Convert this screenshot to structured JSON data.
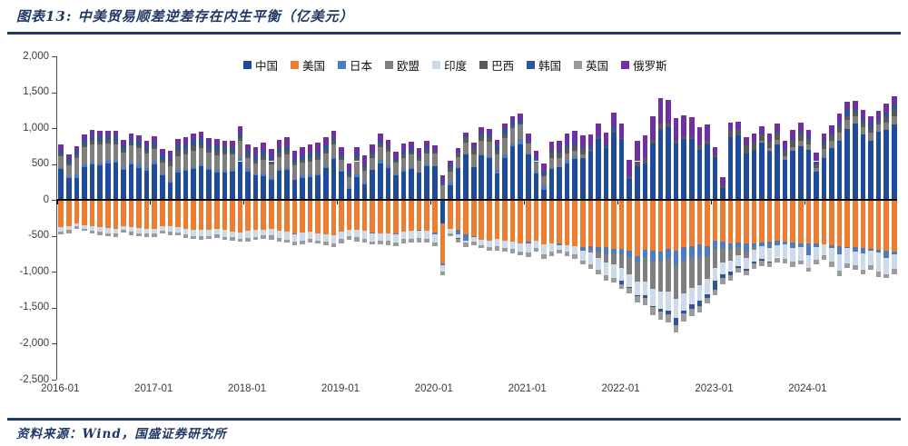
{
  "header": {
    "title": "图表13:  中美贸易顺差逆差存在内生平衡（亿美元）"
  },
  "footer": {
    "source": "资料来源：Wind，国盛证券研究所"
  },
  "colors": {
    "accent_navy": "#1F3864",
    "axis": "#4d4d4d",
    "zero_line": "#0a0a0a"
  },
  "chart_data": {
    "type": "bar",
    "stacked": true,
    "title": "中美贸易顺差逆差存在内生平衡",
    "unit": "亿美元",
    "months_start": "2016-01",
    "months_count": 108,
    "ylim": [
      -2500,
      2000
    ],
    "y_ticks": [
      2000,
      1500,
      1000,
      500,
      0,
      -500,
      -1000,
      -1500,
      -2000,
      -2500
    ],
    "y_tick_labels": [
      "2,000",
      "1,500",
      "1,000",
      "500",
      "0",
      "-500",
      "-1,000",
      "-1,500",
      "-2,000",
      "-2,500"
    ],
    "x_tick_labels": [
      "2016-01",
      "2017-01",
      "2018-01",
      "2019-01",
      "2020-01",
      "2021-01",
      "2022-01",
      "2023-01",
      "2024-01"
    ],
    "x_tick_month_index": [
      0,
      12,
      24,
      36,
      48,
      60,
      72,
      84,
      96
    ],
    "grid": false,
    "legend_position": "top-center",
    "series": [
      {
        "name": "中国",
        "color": "#1E4C9A",
        "values": [
          430,
          300,
          310,
          460,
          500,
          480,
          510,
          520,
          420,
          490,
          450,
          410,
          500,
          340,
          240,
          380,
          410,
          430,
          470,
          420,
          380,
          380,
          400,
          540,
          400,
          340,
          330,
          280,
          410,
          420,
          280,
          310,
          320,
          340,
          450,
          570,
          390,
          150,
          320,
          220,
          420,
          510,
          450,
          350,
          400,
          430,
          380,
          470,
          470,
          -330,
          200,
          450,
          630,
          460,
          620,
          590,
          370,
          580,
          750,
          780,
          630,
          370,
          140,
          430,
          460,
          510,
          570,
          580,
          670,
          850,
          720,
          940,
          850,
          290,
          470,
          510,
          790,
          980,
          1010,
          790,
          850,
          850,
          700,
          780,
          600,
          170,
          880,
          900,
          650,
          700,
          800,
          680,
          780,
          560,
          680,
          750,
          700,
          390,
          590,
          720,
          830,
          990,
          1060,
          910,
          820,
          950,
          970,
          1050
        ]
      },
      {
        "name": "美国",
        "color": "#ED7D31",
        "values": [
          -380,
          -360,
          -320,
          -350,
          -370,
          -380,
          -390,
          -400,
          -360,
          -380,
          -390,
          -400,
          -400,
          -370,
          -360,
          -380,
          -400,
          -410,
          -420,
          -410,
          -400,
          -420,
          -440,
          -450,
          -430,
          -420,
          -410,
          -400,
          -430,
          -440,
          -460,
          -450,
          -440,
          -460,
          -480,
          -490,
          -440,
          -410,
          -420,
          -430,
          -450,
          -460,
          -470,
          -460,
          -440,
          -430,
          -420,
          -430,
          -450,
          -550,
          -400,
          -420,
          -480,
          -500,
          -550,
          -560,
          -540,
          -560,
          -580,
          -600,
          -580,
          -560,
          -620,
          -600,
          -610,
          -630,
          -640,
          -650,
          -640,
          -650,
          -660,
          -680,
          -680,
          -700,
          -780,
          -690,
          -700,
          -720,
          -680,
          -700,
          -660,
          -640,
          -620,
          -640,
          -560,
          -580,
          -600,
          -590,
          -600,
          -610,
          -590,
          -580,
          -570,
          -580,
          -590,
          -600,
          -600,
          -610,
          -620,
          -630,
          -640,
          -650,
          -660,
          -670,
          -680,
          -690,
          -700,
          -720
        ]
      },
      {
        "name": "日本",
        "color": "#4E7DBF",
        "values": [
          20,
          30,
          40,
          30,
          20,
          30,
          40,
          30,
          20,
          30,
          40,
          30,
          30,
          20,
          30,
          40,
          20,
          30,
          20,
          30,
          40,
          30,
          20,
          50,
          30,
          20,
          40,
          30,
          20,
          30,
          -20,
          30,
          40,
          30,
          20,
          30,
          20,
          30,
          40,
          20,
          -10,
          50,
          30,
          -20,
          30,
          20,
          -10,
          20,
          -30,
          -30,
          40,
          -60,
          -80,
          -20,
          10,
          20,
          50,
          60,
          40,
          70,
          -30,
          20,
          50,
          20,
          -20,
          40,
          30,
          -60,
          -50,
          -70,
          -90,
          -60,
          -70,
          -90,
          -80,
          -120,
          -160,
          -130,
          -140,
          -200,
          -180,
          -160,
          -180,
          -140,
          -120,
          -90,
          -80,
          -60,
          -120,
          -40,
          -50,
          -90,
          -60,
          -40,
          -80,
          -60,
          -170,
          -40,
          30,
          -40,
          -120,
          -20,
          -60,
          -70,
          -30,
          -40,
          -110,
          -30
        ]
      },
      {
        "name": "欧盟",
        "color": "#7F7F7F",
        "values": [
          160,
          150,
          230,
          240,
          250,
          260,
          240,
          230,
          220,
          240,
          230,
          210,
          180,
          160,
          200,
          190,
          210,
          220,
          230,
          210,
          200,
          220,
          210,
          230,
          160,
          150,
          190,
          180,
          170,
          190,
          200,
          180,
          170,
          190,
          180,
          170,
          150,
          140,
          180,
          170,
          160,
          180,
          190,
          170,
          160,
          180,
          170,
          160,
          180,
          200,
          160,
          150,
          170,
          180,
          190,
          200,
          210,
          220,
          210,
          200,
          160,
          140,
          150,
          130,
          120,
          100,
          80,
          60,
          -40,
          -80,
          -120,
          -160,
          -200,
          -240,
          -280,
          -320,
          -380,
          -420,
          -450,
          -480,
          -460,
          -420,
          -380,
          -320,
          -260,
          -200,
          -160,
          -120,
          -80,
          -40,
          20,
          40,
          60,
          50,
          60,
          70,
          80,
          60,
          90,
          100,
          110,
          120,
          100,
          110,
          120,
          100,
          110,
          120
        ]
      },
      {
        "name": "印度",
        "color": "#CDDAEB",
        "values": [
          -60,
          -50,
          -40,
          -50,
          -60,
          -60,
          -70,
          -60,
          -50,
          -60,
          -70,
          -60,
          -70,
          -60,
          -80,
          -70,
          -80,
          -90,
          -80,
          -90,
          -80,
          -90,
          -80,
          -90,
          -100,
          -90,
          -80,
          -90,
          -100,
          -110,
          -100,
          -110,
          -100,
          -110,
          -100,
          -110,
          -100,
          -90,
          -100,
          -110,
          -120,
          -110,
          -100,
          -110,
          -100,
          -110,
          -100,
          -110,
          -110,
          -80,
          -60,
          -50,
          -30,
          -60,
          -80,
          -90,
          -100,
          -110,
          -100,
          -120,
          -120,
          -110,
          -130,
          -120,
          -60,
          -90,
          -110,
          -130,
          -160,
          -170,
          -180,
          -190,
          -170,
          -180,
          -190,
          -200,
          -230,
          -250,
          -270,
          -260,
          -240,
          -230,
          -220,
          -210,
          -180,
          -170,
          -160,
          -150,
          -160,
          -170,
          -180,
          -190,
          -170,
          -200,
          -190,
          -180,
          -170,
          -180,
          -150,
          -190,
          -220,
          -210,
          -190,
          -230,
          -200,
          -270,
          -220,
          -210
        ]
      },
      {
        "name": "巴西",
        "color": "#595959",
        "values": [
          30,
          30,
          40,
          50,
          60,
          40,
          50,
          40,
          40,
          20,
          40,
          40,
          30,
          40,
          60,
          70,
          60,
          70,
          60,
          50,
          50,
          50,
          30,
          50,
          30,
          40,
          60,
          50,
          60,
          50,
          40,
          40,
          50,
          50,
          40,
          40,
          20,
          30,
          40,
          50,
          60,
          50,
          40,
          30,
          40,
          30,
          30,
          50,
          20,
          30,
          40,
          60,
          70,
          70,
          80,
          60,
          60,
          50,
          40,
          10,
          10,
          10,
          10,
          80,
          80,
          90,
          70,
          70,
          40,
          20,
          10,
          30,
          10,
          40,
          70,
          80,
          50,
          90,
          50,
          40,
          40,
          30,
          60,
          40,
          20,
          40,
          100,
          80,
          110,
          100,
          90,
          90,
          80,
          90,
          80,
          90,
          60,
          50,
          70,
          80,
          80,
          60,
          70,
          70,
          50,
          40,
          70,
          90
        ]
      },
      {
        "name": "韩国",
        "color": "#2F5597",
        "values": [
          50,
          60,
          70,
          60,
          70,
          80,
          60,
          70,
          60,
          70,
          80,
          60,
          60,
          70,
          60,
          90,
          80,
          90,
          80,
          70,
          90,
          70,
          80,
          60,
          60,
          70,
          60,
          60,
          60,
          60,
          50,
          60,
          80,
          60,
          70,
          40,
          50,
          60,
          50,
          40,
          20,
          40,
          20,
          20,
          50,
          50,
          30,
          20,
          0,
          40,
          40,
          -10,
          20,
          30,
          40,
          40,
          80,
          80,
          50,
          60,
          30,
          40,
          40,
          20,
          30,
          40,
          50,
          20,
          40,
          20,
          30,
          60,
          -50,
          -10,
          -10,
          -30,
          -20,
          -30,
          -50,
          -100,
          -40,
          -70,
          -70,
          -50,
          -130,
          -50,
          -50,
          -30,
          -20,
          -20,
          -30,
          -10,
          30,
          20,
          30,
          40,
          30,
          40,
          40,
          20,
          50,
          80,
          40,
          40,
          70,
          30,
          60,
          70
        ]
      },
      {
        "name": "英国",
        "color": "#9B9B9B",
        "values": [
          -40,
          -50,
          -40,
          -30,
          -40,
          -50,
          -40,
          -50,
          -40,
          -50,
          -40,
          -50,
          -50,
          -40,
          -50,
          -40,
          -50,
          -40,
          -50,
          -40,
          -50,
          -40,
          -50,
          -40,
          -50,
          -40,
          -50,
          -60,
          -50,
          -40,
          -50,
          -60,
          -50,
          -40,
          -50,
          -60,
          -60,
          -50,
          -60,
          -50,
          -40,
          -50,
          -60,
          -50,
          -60,
          -50,
          -60,
          -50,
          -50,
          -60,
          -40,
          -50,
          -60,
          -50,
          -40,
          -50,
          -60,
          -50,
          -60,
          -50,
          -60,
          -50,
          -70,
          -60,
          -50,
          -60,
          -70,
          -60,
          -70,
          -60,
          -70,
          -60,
          -70,
          -80,
          -90,
          -100,
          -110,
          -120,
          -110,
          -100,
          -110,
          -100,
          -90,
          -80,
          -70,
          -80,
          -70,
          -60,
          -70,
          -80,
          -70,
          -60,
          -70,
          -60,
          -70,
          -60,
          -60,
          -70,
          -60,
          -70,
          -80,
          -70,
          -60,
          -70,
          -60,
          -70,
          -60,
          -70
        ]
      },
      {
        "name": "俄罗斯",
        "color": "#7030A0",
        "values": [
          80,
          70,
          60,
          70,
          80,
          70,
          60,
          70,
          80,
          70,
          60,
          70,
          90,
          80,
          90,
          80,
          90,
          80,
          90,
          80,
          90,
          80,
          90,
          100,
          100,
          110,
          120,
          110,
          120,
          130,
          120,
          110,
          120,
          130,
          120,
          110,
          110,
          100,
          110,
          120,
          110,
          100,
          110,
          100,
          110,
          100,
          110,
          100,
          90,
          80,
          70,
          60,
          50,
          60,
          70,
          80,
          70,
          80,
          70,
          80,
          100,
          110,
          120,
          130,
          140,
          150,
          160,
          170,
          160,
          170,
          180,
          190,
          200,
          230,
          280,
          310,
          330,
          350,
          330,
          310,
          290,
          270,
          250,
          230,
          120,
          110,
          100,
          110,
          120,
          130,
          120,
          110,
          120,
          110,
          120,
          130,
          110,
          120,
          110,
          120,
          130,
          120,
          110,
          120,
          110,
          120,
          130,
          120
        ]
      }
    ]
  }
}
